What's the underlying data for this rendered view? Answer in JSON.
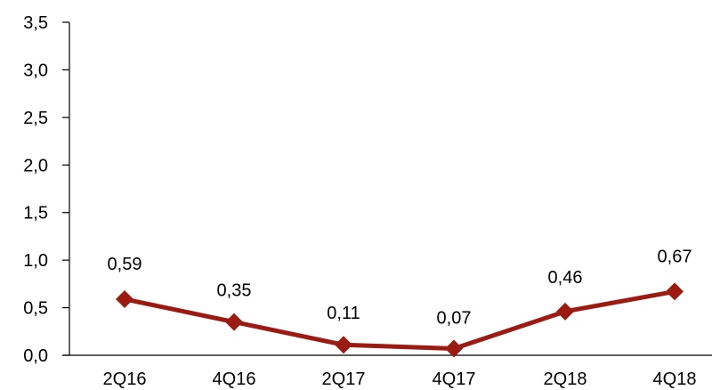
{
  "chart_data": {
    "type": "line",
    "categories": [
      "2Q16",
      "4Q16",
      "2Q17",
      "4Q17",
      "2Q18",
      "4Q18"
    ],
    "series": [
      {
        "values": [
          0.59,
          0.35,
          0.11,
          0.07,
          0.46,
          0.67
        ]
      }
    ],
    "data_labels": [
      "0,59",
      "0,35",
      "0,11",
      "0,07",
      "0,46",
      "0,67"
    ],
    "y_ticks": [
      "0,0",
      "0,5",
      "1,0",
      "1,5",
      "2,0",
      "2,5",
      "3,0",
      "3,5"
    ],
    "ylim": [
      0,
      3.5
    ],
    "grid": false,
    "legend": "none",
    "marker": "diamond",
    "series_color": "#9b1b12"
  }
}
